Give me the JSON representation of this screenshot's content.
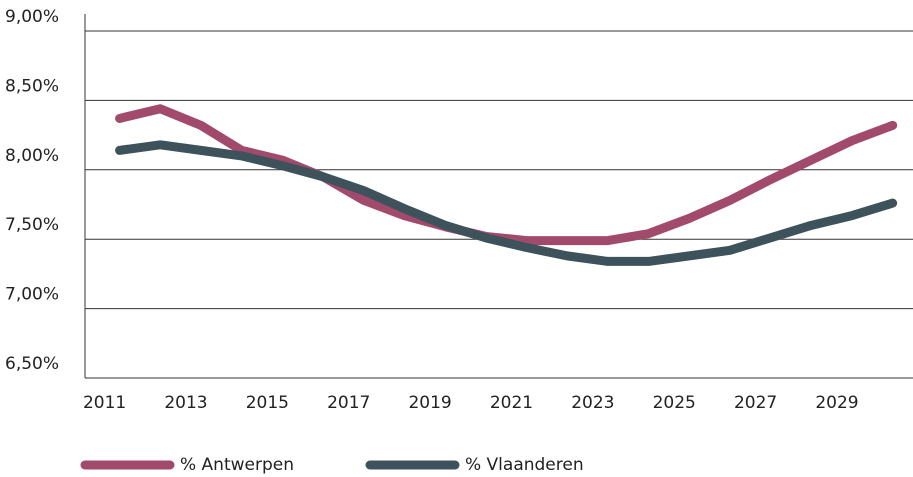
{
  "chart_data": {
    "type": "line",
    "x": [
      2011,
      2012,
      2013,
      2014,
      2015,
      2016,
      2017,
      2018,
      2019,
      2020,
      2021,
      2022,
      2023,
      2024,
      2025,
      2026,
      2027,
      2028,
      2029,
      2030
    ],
    "series": [
      {
        "name": "% Antwerpen",
        "color": "#a24a6b",
        "values": [
          8.37,
          8.44,
          8.32,
          8.14,
          8.07,
          7.95,
          7.78,
          7.67,
          7.59,
          7.52,
          7.49,
          7.49,
          7.49,
          7.54,
          7.65,
          7.78,
          7.93,
          8.07,
          8.21,
          8.32
        ]
      },
      {
        "name": "% Vlaanderen",
        "color": "#3e525c",
        "values": [
          8.14,
          8.18,
          8.14,
          8.1,
          8.03,
          7.95,
          7.85,
          7.72,
          7.6,
          7.51,
          7.44,
          7.38,
          7.34,
          7.34,
          7.38,
          7.42,
          7.51,
          7.6,
          7.67,
          7.76
        ]
      }
    ],
    "xlim": [
      2010.15,
      2030.5
    ],
    "xticks": [
      2011,
      2013,
      2015,
      2017,
      2019,
      2021,
      2023,
      2025,
      2027,
      2029
    ],
    "ylim": [
      6.5,
      9
    ],
    "yticks": [
      {
        "value": 6.5,
        "label": "6,50%"
      },
      {
        "value": 7,
        "label": "7,00%"
      },
      {
        "value": 7.5,
        "label": "7,50%"
      },
      {
        "value": 8,
        "label": "8,00%"
      },
      {
        "value": 8.5,
        "label": "8,50%"
      },
      {
        "value": 9,
        "label": "9,00%"
      }
    ],
    "grid": true,
    "legend": "bottom"
  }
}
